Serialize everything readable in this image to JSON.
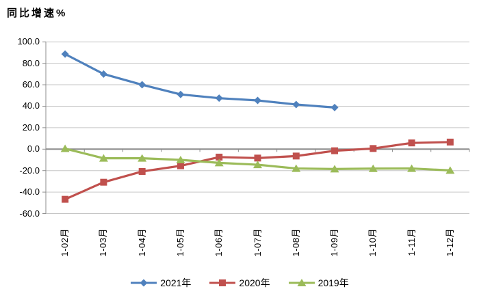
{
  "title": "同比增速%",
  "chart_data": {
    "type": "line",
    "title": "同比增速%",
    "ylabel": "同比增速%",
    "xlabel": "",
    "grid": true,
    "legend_position": "bottom",
    "ylim": [
      -60,
      100
    ],
    "y_tick_step": 20,
    "y_ticks": [
      "100.0",
      "80.0",
      "60.0",
      "40.0",
      "20.0",
      "0.0",
      "-20.0",
      "-40.0",
      "-60.0"
    ],
    "y_tick_values": [
      100,
      80,
      60,
      40,
      20,
      0,
      -20,
      -40,
      -60
    ],
    "categories": [
      "1-02月",
      "1-03月",
      "1-04月",
      "1-05月",
      "1-06月",
      "1-07月",
      "1-08月",
      "1-09月",
      "1-10月",
      "1-11月",
      "1-12月"
    ],
    "series": [
      {
        "name": "2021年",
        "color": "#4F81BD",
        "marker": "diamond",
        "values": [
          88.6,
          70.0,
          60.0,
          51.0,
          47.5,
          45.4,
          41.6,
          38.8,
          null,
          null,
          null
        ]
      },
      {
        "name": "2020年",
        "color": "#C0504D",
        "marker": "square",
        "values": [
          -46.7,
          -30.8,
          -20.8,
          -15.5,
          -7.4,
          -8.3,
          -6.4,
          -1.5,
          0.6,
          5.8,
          6.6
        ]
      },
      {
        "name": "2019年",
        "color": "#9BBB59",
        "marker": "triangle",
        "values": [
          0.5,
          -8.5,
          -8.5,
          -10.0,
          -12.8,
          -14.5,
          -18.0,
          -18.5,
          -18.1,
          -18.0,
          -19.8
        ]
      }
    ]
  },
  "colors": {
    "gridline": "#C6C6C6",
    "axis": "#8C8C8C",
    "background": "#FFFFFF",
    "text": "#000000"
  }
}
